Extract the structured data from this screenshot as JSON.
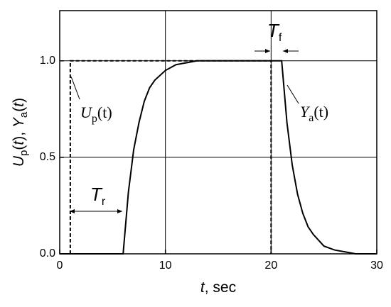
{
  "chart_data": {
    "type": "line",
    "xlabel": [
      "t",
      ", sec"
    ],
    "ylabel": [
      "U",
      "p",
      "(",
      "t",
      "), ",
      "Y",
      "a",
      "(",
      "t",
      ")"
    ],
    "xlim": [
      0,
      30
    ],
    "xticks": [
      0,
      10,
      20,
      30
    ],
    "ylim": [
      0,
      1.26
    ],
    "yticks": [
      {
        "value": 0,
        "label": "0.0"
      },
      {
        "value": 0.5,
        "label": "0.5"
      },
      {
        "value": 1,
        "label": "1.0"
      }
    ],
    "grid": true,
    "series": [
      {
        "color": "#000000",
        "dashed": true,
        "x": [
          1,
          1,
          20,
          20
        ],
        "values": [
          0,
          1,
          1,
          0
        ]
      },
      {
        "color": "#000000",
        "dashed": false,
        "x": [
          0,
          6,
          6.5,
          7,
          7.5,
          8,
          8.5,
          9,
          10,
          11,
          12,
          13,
          15,
          21,
          21.5,
          22,
          22.5,
          23,
          23.5,
          24,
          25,
          26,
          27,
          28,
          30
        ],
        "values": [
          0,
          0,
          0.32,
          0.54,
          0.68,
          0.79,
          0.86,
          0.9,
          0.95,
          0.98,
          0.99,
          1,
          1,
          1,
          0.68,
          0.46,
          0.31,
          0.21,
          0.14,
          0.1,
          0.04,
          0.02,
          0.01,
          0,
          0
        ]
      }
    ],
    "annotations": [
      {
        "text": [
          "U",
          "p",
          "(t)"
        ]
      },
      {
        "text": [
          "Y",
          "a",
          "(t)"
        ]
      },
      {
        "text": [
          "T",
          "r"
        ]
      },
      {
        "text": [
          "T",
          "f"
        ]
      }
    ]
  }
}
